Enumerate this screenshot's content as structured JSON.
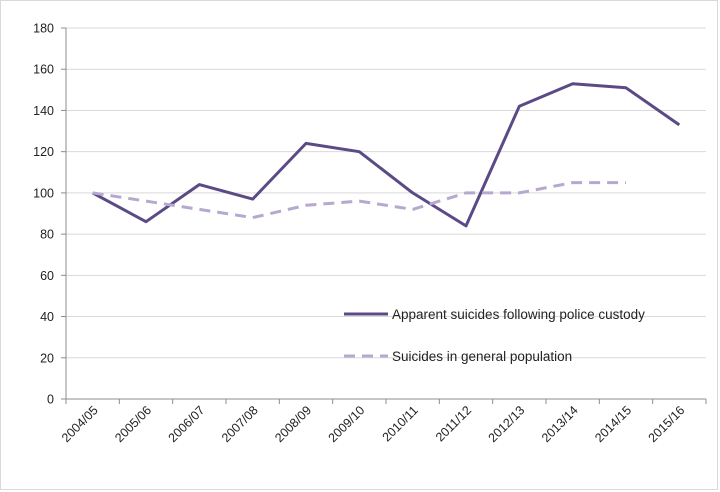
{
  "chart_data": {
    "type": "line",
    "title": "",
    "xlabel": "",
    "ylabel": "",
    "ylim": [
      0,
      180
    ],
    "yticks": [
      0,
      20,
      40,
      60,
      80,
      100,
      120,
      140,
      160,
      180
    ],
    "grid": true,
    "legend_position": "bottom-right",
    "categories": [
      "2004/05",
      "2005/06",
      "2006/07",
      "2007/08",
      "2008/09",
      "2009/10",
      "2010/11",
      "2011/12",
      "2012/13",
      "2013/14",
      "2014/15",
      "2015/16"
    ],
    "series": [
      {
        "name": "Apparent suicides following police custody",
        "style": "solid",
        "color": "#5b4a86",
        "values": [
          100,
          86,
          104,
          97,
          124,
          120,
          100,
          84,
          142,
          153,
          151,
          133
        ]
      },
      {
        "name": "Suicides in general population",
        "style": "dashed",
        "color": "#b6a8cf",
        "values": [
          100,
          96,
          92,
          88,
          94,
          96,
          92,
          100,
          100,
          105,
          105,
          null
        ]
      }
    ]
  }
}
